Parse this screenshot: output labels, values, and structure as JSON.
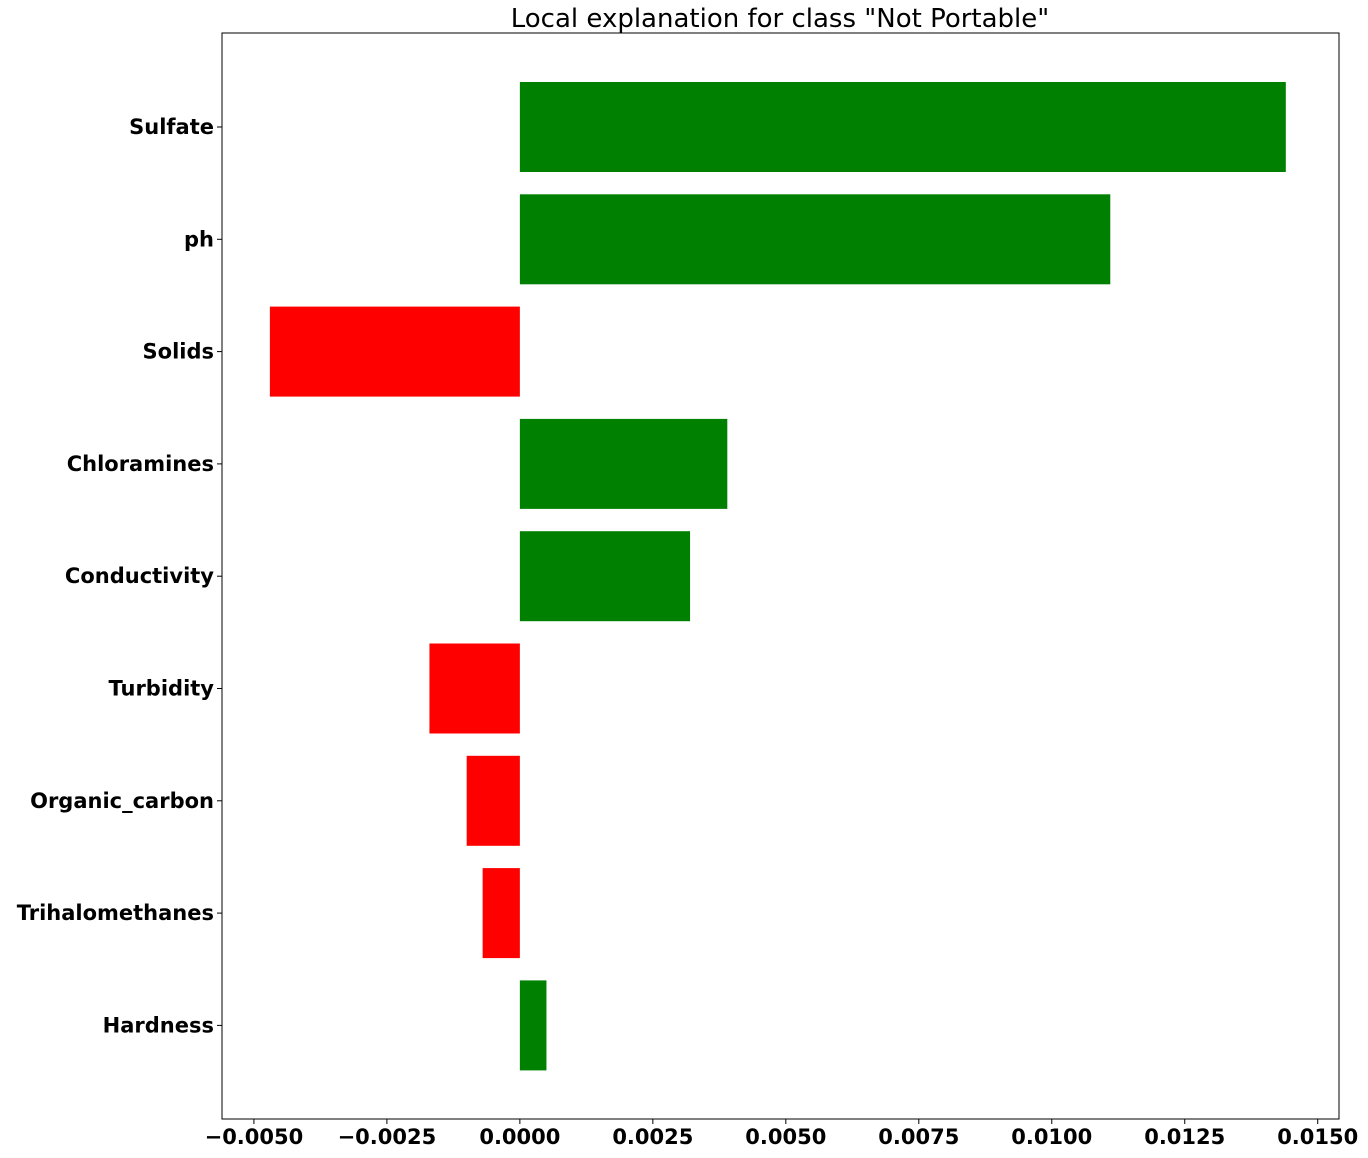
{
  "chart_data": {
    "type": "bar",
    "orientation": "horizontal",
    "title": "Local explanation for class \"Not Portable\"",
    "xlabel": "",
    "ylabel": "",
    "categories": [
      "Sulfate",
      "ph",
      "Solids",
      "Chloramines",
      "Conductivity",
      "Turbidity",
      "Organic_carbon",
      "Trihalomethanes",
      "Hardness"
    ],
    "values": [
      0.0144,
      0.0111,
      -0.0047,
      0.0039,
      0.0032,
      -0.0017,
      -0.001,
      -0.0007,
      0.0005
    ],
    "positive_color": "#008000",
    "negative_color": "#ff0000",
    "xlim": [
      -0.0056,
      0.0154
    ],
    "xticks": [
      -0.005,
      -0.0025,
      0.0,
      0.0025,
      0.005,
      0.0075,
      0.01,
      0.0125,
      0.015
    ],
    "xtick_labels": [
      "−0.0050",
      "−0.0025",
      "0.0000",
      "0.0025",
      "0.0050",
      "0.0075",
      "0.0100",
      "0.0125",
      "0.0150"
    ],
    "grid": false,
    "legend": "none"
  }
}
